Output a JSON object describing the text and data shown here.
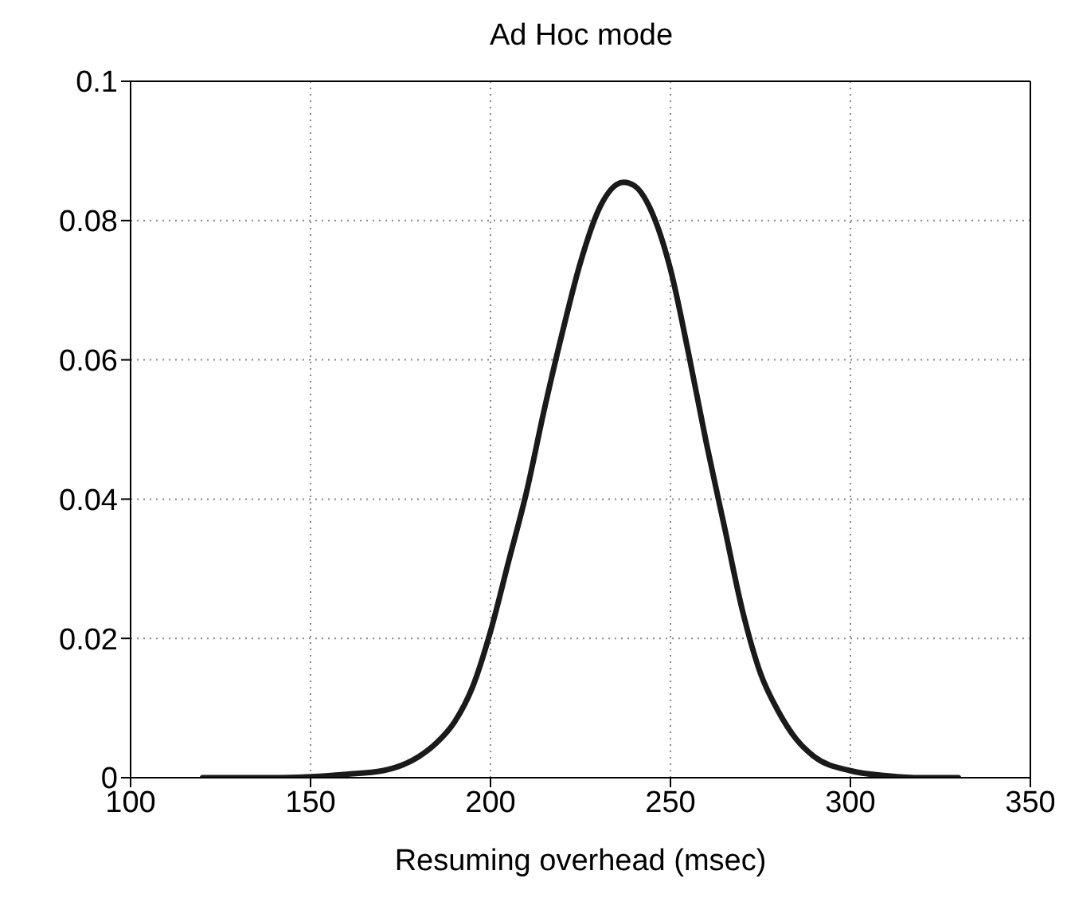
{
  "chart_data": {
    "type": "line",
    "title": "Ad Hoc mode",
    "xlabel": "Resuming overhead (msec)",
    "x": [
      120,
      140,
      160,
      170,
      180,
      185,
      190,
      195,
      200,
      205,
      210,
      215,
      220,
      225,
      230,
      237,
      240,
      245,
      250,
      255,
      260,
      265,
      270,
      275,
      280,
      285,
      290,
      300,
      310,
      320,
      330
    ],
    "series": [
      {
        "color": "#1a1a1a",
        "values": [
          0,
          0,
          0.0005,
          0.001,
          0.003,
          0.005,
          0.008,
          0.013,
          0.021,
          0.031,
          0.041,
          0.053,
          0.064,
          0.074,
          0.0815,
          0.0855,
          0.085,
          0.081,
          0.073,
          0.061,
          0.048,
          0.036,
          0.024,
          0.015,
          0.0095,
          0.0055,
          0.003,
          0.001,
          0.0003,
          0,
          0
        ]
      }
    ],
    "xlim": [
      100,
      350
    ],
    "xticks": [
      100,
      150,
      200,
      250,
      300,
      350
    ],
    "ylim": [
      0,
      0.1
    ],
    "yticks": [
      0,
      0.02,
      0.04,
      0.06,
      0.08,
      0.1
    ],
    "grid": true,
    "marker": "none",
    "line_style": "solid"
  }
}
